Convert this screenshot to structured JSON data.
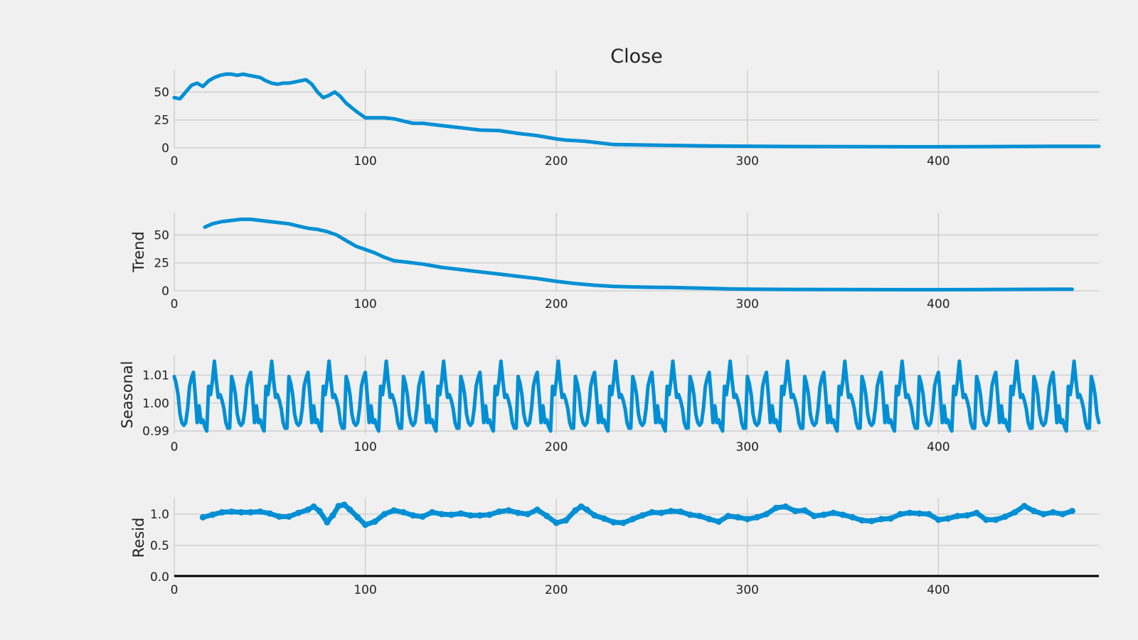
{
  "colors": {
    "series": "#008fd5",
    "background": "#f0f0f0",
    "grid": "#cbcbcb",
    "baseline": "#000000"
  },
  "chart_data": [
    {
      "type": "line",
      "title": "Close",
      "ylabel": "",
      "xlim": [
        0,
        484
      ],
      "ylim": [
        0,
        70
      ],
      "x_ticks": [
        0,
        100,
        200,
        300,
        400
      ],
      "y_ticks": [
        0,
        25,
        50
      ],
      "grid": true,
      "series": [
        {
          "x": [
            0,
            3,
            6,
            9,
            12,
            15,
            18,
            21,
            24,
            27,
            30,
            33,
            36,
            39,
            42,
            45,
            48,
            51,
            54,
            57,
            60,
            63,
            66,
            69,
            72,
            75,
            78,
            81,
            84,
            87,
            90,
            95,
            100,
            105,
            110,
            115,
            120,
            125,
            130,
            135,
            140,
            150,
            160,
            170,
            180,
            190,
            200,
            205,
            210,
            215,
            220,
            225,
            230,
            240,
            250,
            260,
            270,
            280,
            290,
            300,
            320,
            340,
            360,
            380,
            400,
            420,
            440,
            460,
            470,
            484
          ],
          "y": [
            45,
            44,
            50,
            56,
            58,
            55,
            60,
            63,
            65,
            66,
            66,
            65,
            66,
            65,
            64,
            63,
            60,
            58,
            57,
            58,
            58,
            59,
            60,
            61,
            57,
            50,
            45,
            47,
            50,
            46,
            40,
            33,
            27,
            27,
            27,
            26,
            24,
            22,
            22,
            21,
            20,
            18,
            16,
            15.5,
            13,
            11,
            8,
            7,
            6.5,
            6,
            5,
            4,
            3,
            2.8,
            2.5,
            2.2,
            2,
            1.8,
            1.6,
            1.5,
            1.3,
            1.2,
            1.1,
            1.0,
            1.0,
            1.1,
            1.3,
            1.4,
            1.4,
            1.4
          ]
        }
      ]
    },
    {
      "type": "line",
      "title": "",
      "ylabel": "Trend",
      "xlim": [
        0,
        484
      ],
      "ylim": [
        0,
        70
      ],
      "x_ticks": [
        0,
        100,
        200,
        300,
        400
      ],
      "y_ticks": [
        0,
        25,
        50
      ],
      "grid": true,
      "series": [
        {
          "x": [
            16,
            20,
            25,
            30,
            35,
            40,
            45,
            50,
            55,
            60,
            65,
            70,
            75,
            80,
            85,
            90,
            95,
            100,
            105,
            110,
            115,
            120,
            130,
            140,
            150,
            160,
            170,
            180,
            190,
            200,
            210,
            220,
            230,
            240,
            250,
            260,
            270,
            280,
            290,
            300,
            320,
            340,
            360,
            380,
            400,
            420,
            440,
            460,
            470
          ],
          "y": [
            57,
            60,
            62,
            63,
            64,
            64,
            63,
            62,
            61,
            60,
            58,
            56,
            55,
            53,
            50,
            45,
            40,
            37,
            34,
            30,
            27,
            26,
            24,
            21,
            19,
            17,
            15,
            13,
            11,
            8.5,
            6.5,
            5,
            4,
            3.5,
            3.2,
            3,
            2.6,
            2.2,
            1.8,
            1.5,
            1.3,
            1.2,
            1.1,
            1.0,
            1.0,
            1.1,
            1.3,
            1.4,
            1.4
          ]
        }
      ]
    },
    {
      "type": "line",
      "title": "",
      "ylabel": "Seasonal",
      "xlim": [
        0,
        484
      ],
      "ylim": [
        0.989,
        1.017
      ],
      "x_ticks": [
        0,
        100,
        200,
        300,
        400
      ],
      "y_ticks": [
        0.99,
        1.0,
        1.01
      ],
      "y_tick_labels": [
        "0.99",
        "1.00",
        "1.01"
      ],
      "grid": true,
      "period": 30,
      "series": [
        {
          "x": [
            0,
            1,
            2,
            3,
            4,
            5,
            6,
            7,
            8,
            9,
            10,
            11,
            12,
            13,
            14,
            15,
            16,
            17,
            18,
            19,
            20,
            21,
            22,
            23,
            24,
            25,
            26,
            27,
            28,
            29
          ],
          "y": [
            1.0095,
            1.007,
            1.003,
            0.996,
            0.993,
            0.992,
            0.993,
            0.998,
            1.006,
            1.009,
            1.011,
            1.003,
            0.993,
            0.999,
            0.993,
            0.994,
            0.9915,
            0.99,
            1.006,
            1.003,
            1.008,
            1.015,
            1.008,
            1.002,
            1.003,
            1.001,
            0.998,
            0.993,
            0.991,
            0.991
          ]
        }
      ]
    },
    {
      "type": "scatter",
      "title": "",
      "ylabel": "Resid",
      "xlim": [
        0,
        484
      ],
      "ylim": [
        0,
        1.25
      ],
      "x_ticks": [
        0,
        100,
        200,
        300,
        400
      ],
      "y_ticks": [
        0.0,
        0.5,
        1.0
      ],
      "y_tick_labels": [
        "0.0",
        "0.5",
        "1.0"
      ],
      "baseline": 0,
      "grid": true,
      "series": [
        {
          "x": [
            15,
            20,
            25,
            30,
            35,
            40,
            45,
            50,
            55,
            60,
            65,
            70,
            73,
            76,
            80,
            83,
            86,
            89,
            92,
            96,
            100,
            105,
            110,
            115,
            120,
            125,
            130,
            135,
            140,
            145,
            150,
            155,
            160,
            165,
            170,
            175,
            180,
            185,
            190,
            195,
            200,
            205,
            210,
            213,
            216,
            220,
            225,
            230,
            235,
            240,
            245,
            250,
            255,
            260,
            265,
            270,
            275,
            280,
            285,
            290,
            295,
            300,
            305,
            310,
            315,
            320,
            325,
            330,
            335,
            340,
            345,
            350,
            355,
            360,
            365,
            370,
            375,
            380,
            385,
            390,
            395,
            400,
            405,
            410,
            415,
            420,
            425,
            430,
            435,
            440,
            445,
            450,
            455,
            460,
            465,
            470
          ],
          "y": [
            0.95,
            0.99,
            1.03,
            1.04,
            1.03,
            1.03,
            1.04,
            1.01,
            0.96,
            0.96,
            1.02,
            1.07,
            1.12,
            1.05,
            0.87,
            0.98,
            1.13,
            1.15,
            1.07,
            0.95,
            0.83,
            0.88,
            1.0,
            1.06,
            1.03,
            0.98,
            0.96,
            1.03,
            1.0,
            0.99,
            1.01,
            0.98,
            0.98,
            0.99,
            1.04,
            1.06,
            1.02,
            1.0,
            1.07,
            0.97,
            0.86,
            0.9,
            1.06,
            1.12,
            1.07,
            0.98,
            0.93,
            0.87,
            0.86,
            0.92,
            0.98,
            1.03,
            1.02,
            1.05,
            1.04,
            0.99,
            0.97,
            0.92,
            0.88,
            0.97,
            0.95,
            0.92,
            0.95,
            1.0,
            1.1,
            1.12,
            1.05,
            1.06,
            0.97,
            0.99,
            1.02,
            0.99,
            0.95,
            0.9,
            0.89,
            0.92,
            0.93,
            1.0,
            1.02,
            1.01,
            1.0,
            0.91,
            0.93,
            0.97,
            0.98,
            1.02,
            0.91,
            0.91,
            0.96,
            1.03,
            1.13,
            1.05,
            1.0,
            1.03,
            1.0,
            1.05
          ]
        }
      ]
    }
  ]
}
